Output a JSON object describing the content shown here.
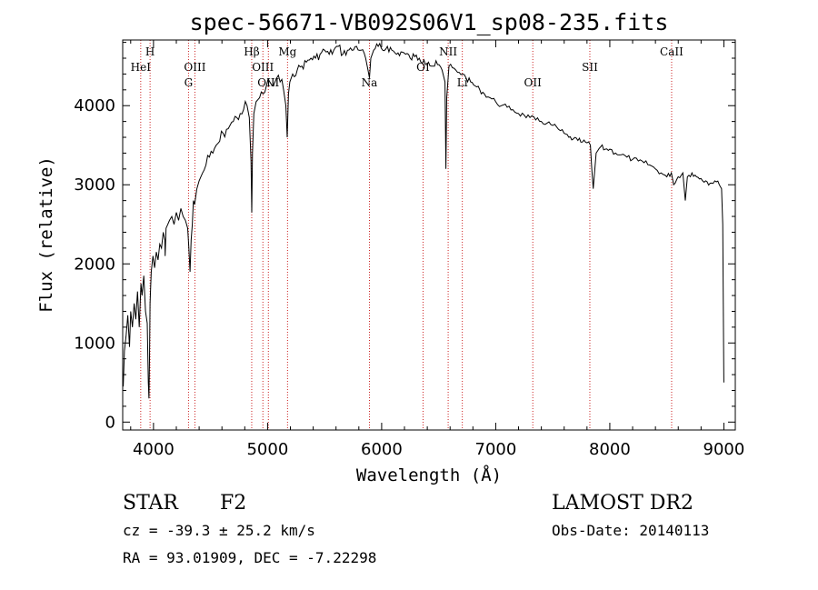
{
  "chart_data": {
    "type": "line",
    "title": "spec-56671-VB092S06V1_sp08-235.fits",
    "xlabel": "Wavelength (Å)",
    "ylabel": "Flux (relative)",
    "xlim": [
      3730,
      9100
    ],
    "ylim": [
      -100,
      4830
    ],
    "x_ticks": [
      4000,
      5000,
      6000,
      7000,
      8000,
      9000
    ],
    "y_ticks": [
      0,
      1000,
      2000,
      3000,
      4000
    ],
    "grid": false,
    "line_color": "#000000",
    "marker_color": "#cc2222",
    "spectrum": {
      "x": [
        3735,
        3745,
        3760,
        3775,
        3790,
        3800,
        3815,
        3830,
        3845,
        3860,
        3875,
        3890,
        3900,
        3915,
        3930,
        3945,
        3955,
        3960,
        3965,
        3970,
        3980,
        3995,
        4010,
        4025,
        4040,
        4055,
        4070,
        4085,
        4100,
        4102,
        4110,
        4125,
        4140,
        4160,
        4180,
        4200,
        4220,
        4240,
        4260,
        4280,
        4300,
        4310,
        4320,
        4330,
        4340,
        4350,
        4360,
        4380,
        4400,
        4430,
        4460,
        4490,
        4520,
        4550,
        4580,
        4610,
        4640,
        4670,
        4700,
        4730,
        4760,
        4790,
        4820,
        4840,
        4855,
        4861,
        4868,
        4880,
        4900,
        4930,
        4960,
        4990,
        5020,
        5050,
        5080,
        5110,
        5140,
        5160,
        5172,
        5183,
        5195,
        5220,
        5260,
        5300,
        5340,
        5380,
        5420,
        5460,
        5500,
        5540,
        5580,
        5620,
        5660,
        5700,
        5740,
        5780,
        5820,
        5860,
        5880,
        5893,
        5905,
        5930,
        5970,
        6010,
        6050,
        6090,
        6130,
        6170,
        6210,
        6250,
        6290,
        6330,
        6370,
        6410,
        6450,
        6490,
        6530,
        6555,
        6563,
        6570,
        6590,
        6620,
        6650,
        6680,
        6710,
        6740,
        6780,
        6820,
        6860,
        6900,
        6950,
        7000,
        7050,
        7100,
        7150,
        7200,
        7250,
        7300,
        7350,
        7400,
        7450,
        7500,
        7550,
        7600,
        7640,
        7680,
        7720,
        7760,
        7800,
        7830,
        7842,
        7855,
        7880,
        7920,
        7960,
        8000,
        8050,
        8100,
        8150,
        8200,
        8250,
        8300,
        8350,
        8400,
        8450,
        8500,
        8540,
        8560,
        8600,
        8640,
        8662,
        8680,
        8720,
        8760,
        8800,
        8840,
        8880,
        8920,
        8960,
        8980,
        8990,
        8995,
        9000
      ],
      "y": [
        450,
        900,
        1100,
        1350,
        950,
        1400,
        1200,
        1500,
        1300,
        1650,
        1200,
        1750,
        1600,
        1850,
        1400,
        1250,
        500,
        300,
        800,
        1500,
        1900,
        2100,
        1950,
        2150,
        2050,
        2250,
        2200,
        2400,
        2300,
        2100,
        2450,
        2500,
        2550,
        2600,
        2500,
        2650,
        2550,
        2700,
        2600,
        2550,
        2450,
        2200,
        1900,
        2300,
        2500,
        2800,
        2750,
        2950,
        3050,
        3150,
        3250,
        3350,
        3400,
        3500,
        3550,
        3650,
        3700,
        3750,
        3800,
        3850,
        3900,
        3950,
        4000,
        3850,
        3300,
        2650,
        3400,
        3900,
        4050,
        4100,
        4150,
        4250,
        4300,
        4250,
        4350,
        4300,
        4200,
        4000,
        3600,
        4150,
        4300,
        4400,
        4450,
        4500,
        4550,
        4600,
        4600,
        4650,
        4700,
        4650,
        4700,
        4750,
        4650,
        4700,
        4700,
        4750,
        4700,
        4600,
        4450,
        4350,
        4600,
        4700,
        4750,
        4700,
        4750,
        4700,
        4650,
        4680,
        4650,
        4600,
        4620,
        4600,
        4580,
        4550,
        4500,
        4520,
        4450,
        4300,
        3200,
        4100,
        4500,
        4480,
        4450,
        4420,
        4400,
        4350,
        4300,
        4250,
        4200,
        4150,
        4100,
        4050,
        4000,
        3980,
        3950,
        3900,
        3880,
        3850,
        3820,
        3800,
        3780,
        3750,
        3700,
        3650,
        3600,
        3580,
        3560,
        3540,
        3530,
        3500,
        3200,
        2950,
        3400,
        3480,
        3450,
        3450,
        3400,
        3380,
        3350,
        3320,
        3300,
        3280,
        3250,
        3200,
        3150,
        3100,
        3150,
        3000,
        3100,
        3150,
        2800,
        3100,
        3150,
        3100,
        3080,
        3050,
        3020,
        3050,
        3000,
        2950,
        2500,
        1500,
        500
      ]
    },
    "lines": [
      {
        "label": "H",
        "x": 3970,
        "row": 0
      },
      {
        "label": "HeI",
        "x": 3888,
        "row": 1
      },
      {
        "label": "OIII",
        "x": 4363,
        "row": 1
      },
      {
        "label": "G",
        "x": 4307,
        "row": 2
      },
      {
        "label": "Hβ",
        "x": 4861,
        "row": 0
      },
      {
        "label": "OIII",
        "x": 4959,
        "row": 1
      },
      {
        "label": "OIII",
        "x": 5007,
        "row": 2
      },
      {
        "label": "Mg",
        "x": 5175,
        "row": 0
      },
      {
        "label": "Na",
        "x": 5893,
        "row": 2
      },
      {
        "label": "OI",
        "x": 6363,
        "row": 1
      },
      {
        "label": "NII",
        "x": 6583,
        "row": 0
      },
      {
        "label": "Li",
        "x": 6707,
        "row": 2
      },
      {
        "label": "OII",
        "x": 7325,
        "row": 2
      },
      {
        "label": "SII",
        "x": 7825,
        "row": 1
      },
      {
        "label": "CaII",
        "x": 8542,
        "row": 0
      }
    ]
  },
  "info": {
    "object_class": "STAR",
    "subclass": "F2",
    "survey": "LAMOST DR2",
    "cz": "cz = -39.3 ± 25.2 km/s",
    "obs_date": "Obs-Date: 20140113",
    "coords": "RA =  93.01909, DEC =  -7.22298"
  }
}
